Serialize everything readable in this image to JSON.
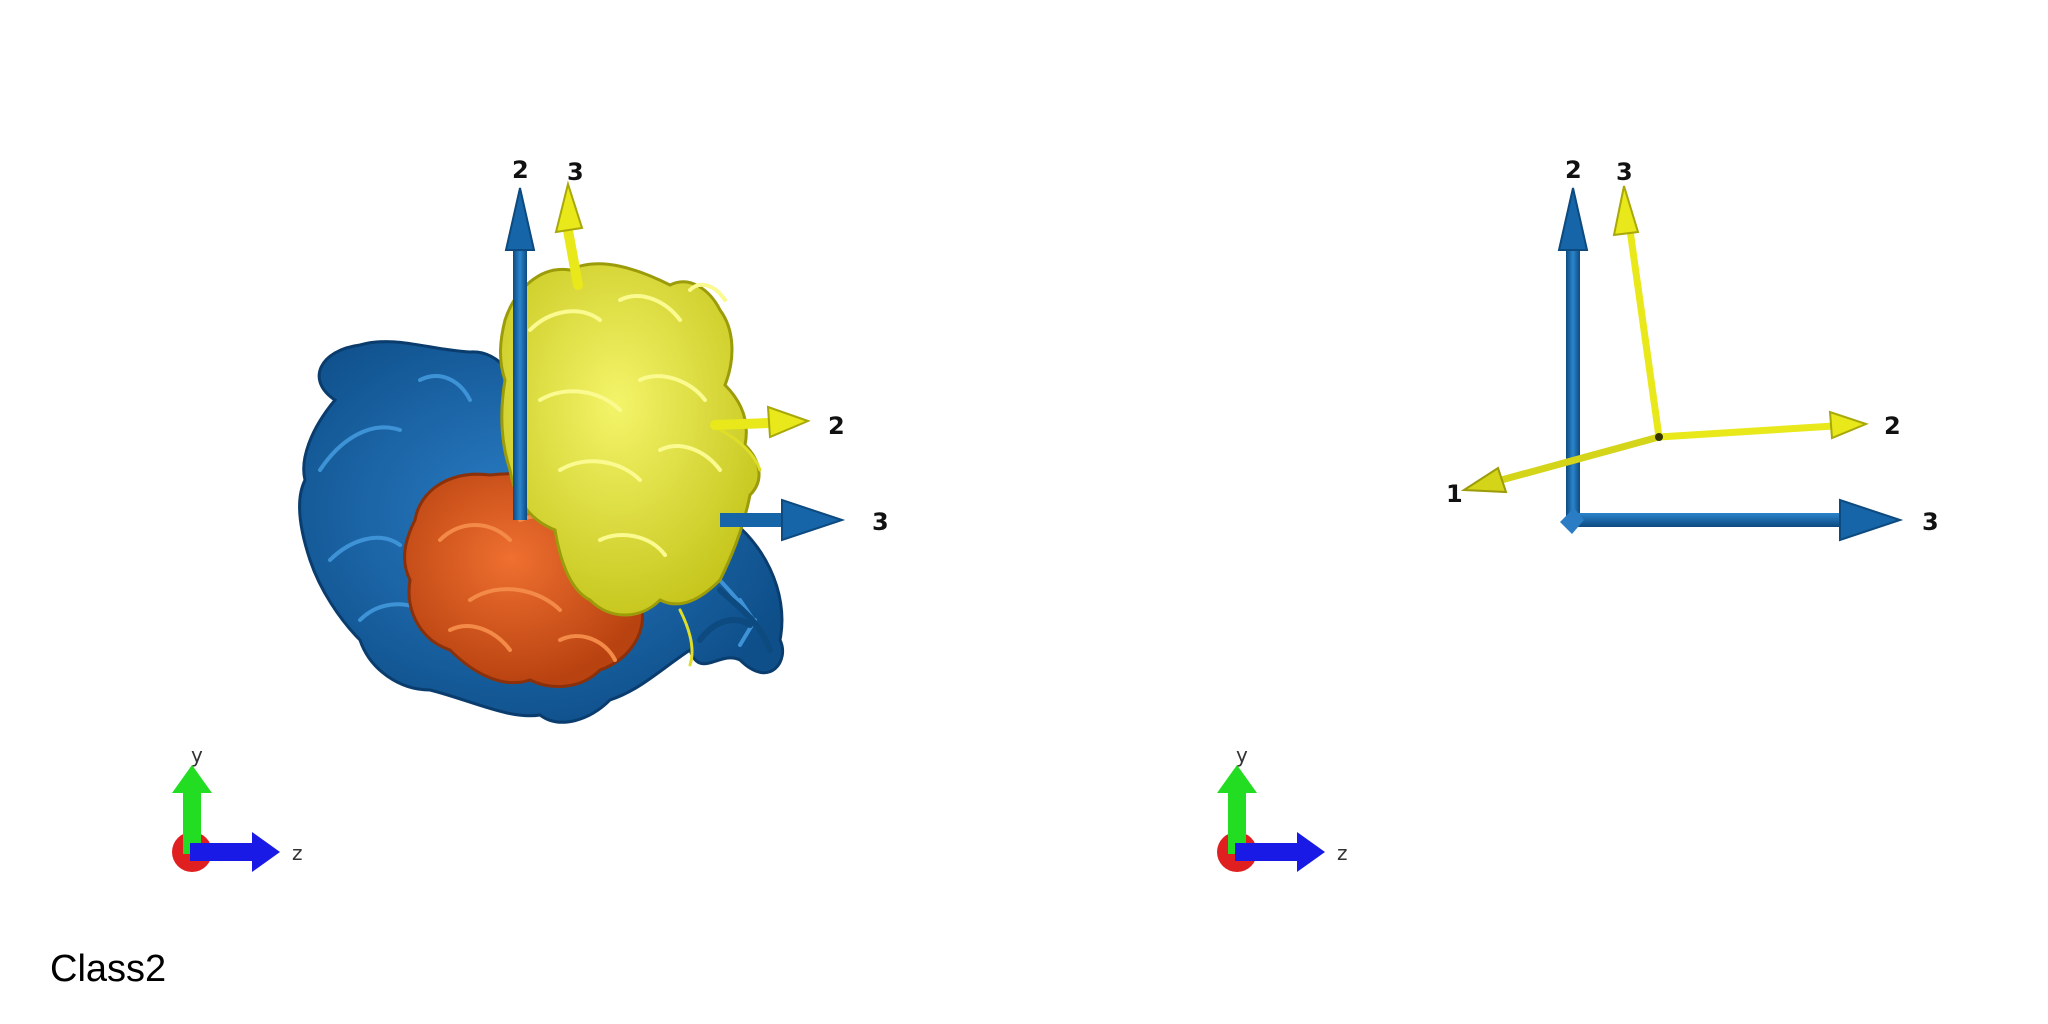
{
  "caption": "Class2",
  "colors": {
    "blue_axes": "#1565a8",
    "yellow_axes": "#e8e81a",
    "orange_subunit": "#d9531e",
    "blue_subunit": "#145a96",
    "yellow_subunit": "#dede2a",
    "orient_y": "#22dd22",
    "orient_z": "#1a1ae6",
    "orient_x": "#e02020"
  },
  "left_panel": {
    "blue_axes": {
      "axis2_label": "2",
      "axis3_label": "3"
    },
    "yellow_axes": {
      "axis2_label": "2",
      "axis3_label": "3"
    },
    "orientation": {
      "y_label": "y",
      "z_label": "z"
    }
  },
  "right_panel": {
    "blue_axes": {
      "axis2_label": "2",
      "axis3_label": "3"
    },
    "yellow_axes": {
      "axis1_label": "1",
      "axis2_label": "2",
      "axis3_label": "3"
    },
    "orientation": {
      "y_label": "y",
      "z_label": "z"
    }
  }
}
